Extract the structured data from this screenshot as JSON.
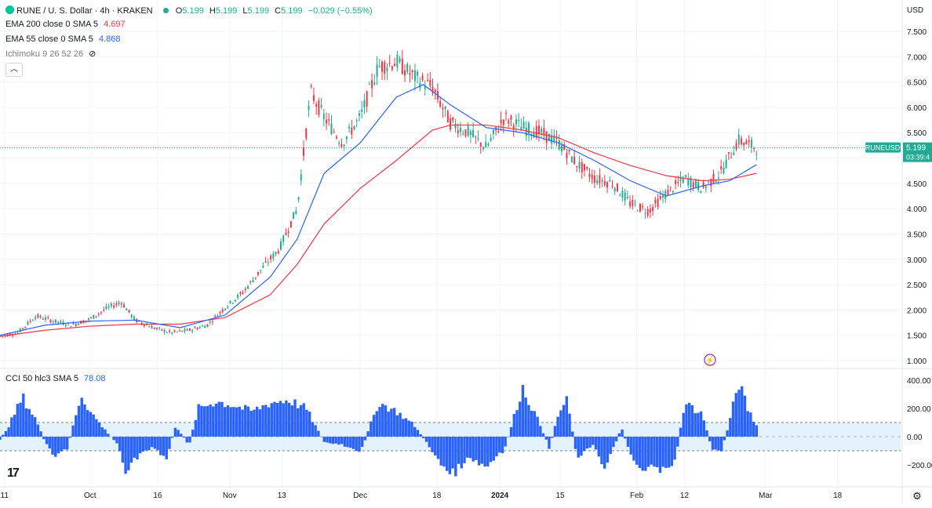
{
  "legend": {
    "symbol_line": "RUNE / U. S. Dollar · 4h · KRAKEN",
    "o_label": "O",
    "o_value": "5.199",
    "h_label": "H",
    "h_value": "5.199",
    "l_label": "L",
    "l_value": "5.199",
    "c_label": "C",
    "c_value": "5.199",
    "change": "−0.029 (−0.55%)",
    "ema200_label": "EMA 200 close 0 SMA 5",
    "ema200_value": "4.697",
    "ema55_label": "EMA 55 close 0 SMA 5",
    "ema55_value": "4.868",
    "ichimoku_label": "Ichimoku 9 26 52 26",
    "cci_label": "CCI 50 hlc3 SMA 5",
    "cci_value": "78.08"
  },
  "price_axis": {
    "currency": "USD",
    "ticks": [
      "7.500",
      "7.000",
      "6.500",
      "6.000",
      "5.500",
      "5.000",
      "4.500",
      "4.000",
      "3.500",
      "3.000",
      "2.500",
      "2.000",
      "1.500",
      "1.000"
    ],
    "last_price_tag": "RUNEUSD",
    "last_price": "5.199",
    "countdown": "03:39:4"
  },
  "cci_axis": {
    "ticks": [
      "400.00",
      "200.00",
      "0.00",
      "−200.00"
    ]
  },
  "time_axis": {
    "labels": [
      "11",
      "Oct",
      "16",
      "Nov",
      "13",
      "Dec",
      "18",
      "2024",
      "15",
      "Feb",
      "12",
      "Mar",
      "18"
    ]
  },
  "colors": {
    "up": "#22ab94",
    "down": "#f23645",
    "ema200": "#f23645",
    "ema55": "#2962ff",
    "cci": "#2962ff",
    "cci_band": "#e3f2fd"
  },
  "chart_data": {
    "type": "candlestick",
    "title": "RUNE / U. S. Dollar · 4h · KRAKEN",
    "ylim": [
      1.0,
      7.5
    ],
    "x_dates": [
      "11",
      "Oct",
      "16",
      "Nov",
      "13",
      "Dec",
      "18",
      "2024",
      "15",
      "Feb",
      "12",
      "Mar",
      "18"
    ],
    "price_path": [
      [
        0,
        1.48
      ],
      [
        0.02,
        1.55
      ],
      [
        0.04,
        1.88
      ],
      [
        0.06,
        1.78
      ],
      [
        0.08,
        1.7
      ],
      [
        0.1,
        1.82
      ],
      [
        0.12,
        2.05
      ],
      [
        0.135,
        2.15
      ],
      [
        0.15,
        1.8
      ],
      [
        0.17,
        1.65
      ],
      [
        0.19,
        1.55
      ],
      [
        0.21,
        1.6
      ],
      [
        0.23,
        1.7
      ],
      [
        0.25,
        2.05
      ],
      [
        0.27,
        2.35
      ],
      [
        0.29,
        2.8
      ],
      [
        0.31,
        3.2
      ],
      [
        0.33,
        4.0
      ],
      [
        0.345,
        6.3
      ],
      [
        0.36,
        5.8
      ],
      [
        0.38,
        5.3
      ],
      [
        0.4,
        5.8
      ],
      [
        0.42,
        6.8
      ],
      [
        0.44,
        6.9
      ],
      [
        0.46,
        6.6
      ],
      [
        0.48,
        6.4
      ],
      [
        0.5,
        5.7
      ],
      [
        0.52,
        5.5
      ],
      [
        0.54,
        5.2
      ],
      [
        0.56,
        5.8
      ],
      [
        0.58,
        5.6
      ],
      [
        0.6,
        5.5
      ],
      [
        0.62,
        5.3
      ],
      [
        0.64,
        4.9
      ],
      [
        0.66,
        4.6
      ],
      [
        0.68,
        4.5
      ],
      [
        0.7,
        4.1
      ],
      [
        0.72,
        3.95
      ],
      [
        0.74,
        4.3
      ],
      [
        0.76,
        4.6
      ],
      [
        0.78,
        4.4
      ],
      [
        0.8,
        4.7
      ],
      [
        0.82,
        5.35
      ],
      [
        0.84,
        5.2
      ]
    ],
    "ema55_path": [
      [
        0,
        1.5
      ],
      [
        0.05,
        1.7
      ],
      [
        0.1,
        1.78
      ],
      [
        0.15,
        1.8
      ],
      [
        0.2,
        1.65
      ],
      [
        0.25,
        1.9
      ],
      [
        0.3,
        2.65
      ],
      [
        0.33,
        3.4
      ],
      [
        0.36,
        4.7
      ],
      [
        0.4,
        5.3
      ],
      [
        0.44,
        6.2
      ],
      [
        0.47,
        6.45
      ],
      [
        0.5,
        6.05
      ],
      [
        0.54,
        5.6
      ],
      [
        0.58,
        5.5
      ],
      [
        0.62,
        5.3
      ],
      [
        0.66,
        4.95
      ],
      [
        0.7,
        4.55
      ],
      [
        0.74,
        4.25
      ],
      [
        0.78,
        4.45
      ],
      [
        0.81,
        4.55
      ],
      [
        0.84,
        4.868
      ]
    ],
    "ema200_path": [
      [
        0,
        1.48
      ],
      [
        0.05,
        1.6
      ],
      [
        0.1,
        1.68
      ],
      [
        0.15,
        1.72
      ],
      [
        0.2,
        1.72
      ],
      [
        0.25,
        1.85
      ],
      [
        0.3,
        2.3
      ],
      [
        0.33,
        2.9
      ],
      [
        0.36,
        3.7
      ],
      [
        0.4,
        4.4
      ],
      [
        0.44,
        4.95
      ],
      [
        0.48,
        5.55
      ],
      [
        0.5,
        5.65
      ],
      [
        0.54,
        5.65
      ],
      [
        0.58,
        5.55
      ],
      [
        0.62,
        5.4
      ],
      [
        0.66,
        5.1
      ],
      [
        0.7,
        4.85
      ],
      [
        0.74,
        4.65
      ],
      [
        0.78,
        4.55
      ],
      [
        0.81,
        4.58
      ],
      [
        0.84,
        4.697
      ]
    ],
    "cci_ylim": [
      -300,
      450
    ],
    "cci_path": [
      [
        0,
        -20
      ],
      [
        0.01,
        80
      ],
      [
        0.025,
        280
      ],
      [
        0.04,
        120
      ],
      [
        0.05,
        -40
      ],
      [
        0.06,
        -150
      ],
      [
        0.075,
        -80
      ],
      [
        0.09,
        300
      ],
      [
        0.1,
        180
      ],
      [
        0.115,
        60
      ],
      [
        0.13,
        -50
      ],
      [
        0.14,
        -240
      ],
      [
        0.155,
        -120
      ],
      [
        0.17,
        -80
      ],
      [
        0.185,
        -160
      ],
      [
        0.195,
        80
      ],
      [
        0.21,
        -60
      ],
      [
        0.22,
        200
      ],
      [
        0.24,
        250
      ],
      [
        0.26,
        220
      ],
      [
        0.28,
        180
      ],
      [
        0.3,
        240
      ],
      [
        0.32,
        260
      ],
      [
        0.34,
        200
      ],
      [
        0.36,
        -40
      ],
      [
        0.38,
        -60
      ],
      [
        0.4,
        -120
      ],
      [
        0.42,
        240
      ],
      [
        0.44,
        180
      ],
      [
        0.46,
        80
      ],
      [
        0.48,
        -100
      ],
      [
        0.5,
        -280
      ],
      [
        0.52,
        -160
      ],
      [
        0.54,
        -220
      ],
      [
        0.56,
        -100
      ],
      [
        0.58,
        350
      ],
      [
        0.6,
        80
      ],
      [
        0.61,
        -80
      ],
      [
        0.62,
        160
      ],
      [
        0.63,
        260
      ],
      [
        0.64,
        -140
      ],
      [
        0.66,
        -60
      ],
      [
        0.67,
        -220
      ],
      [
        0.68,
        -100
      ],
      [
        0.69,
        60
      ],
      [
        0.7,
        -120
      ],
      [
        0.71,
        -220
      ],
      [
        0.73,
        -240
      ],
      [
        0.75,
        -180
      ],
      [
        0.76,
        240
      ],
      [
        0.77,
        200
      ],
      [
        0.78,
        160
      ],
      [
        0.79,
        -80
      ],
      [
        0.8,
        -120
      ],
      [
        0.81,
        100
      ],
      [
        0.82,
        390
      ],
      [
        0.83,
        200
      ],
      [
        0.84,
        78
      ]
    ]
  }
}
